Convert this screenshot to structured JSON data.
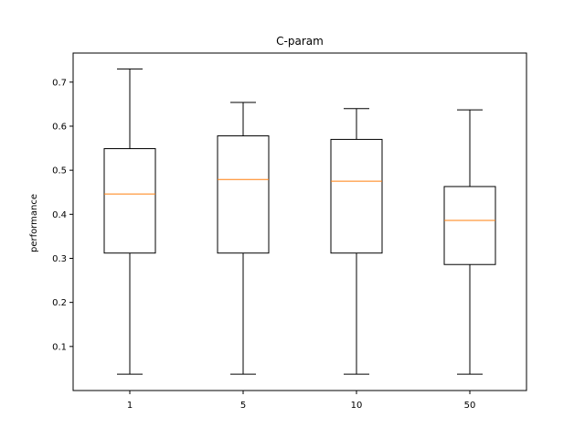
{
  "chart_data": {
    "type": "box",
    "title": "C-param",
    "xlabel": "",
    "ylabel": "performance",
    "categories": [
      "1",
      "5",
      "10",
      "50"
    ],
    "boxes": [
      {
        "category": "1",
        "whisker_low": 0.037,
        "q1": 0.312,
        "median": 0.446,
        "q3": 0.549,
        "whisker_high": 0.73
      },
      {
        "category": "5",
        "whisker_low": 0.037,
        "q1": 0.312,
        "median": 0.479,
        "q3": 0.578,
        "whisker_high": 0.654
      },
      {
        "category": "10",
        "whisker_low": 0.037,
        "q1": 0.312,
        "median": 0.475,
        "q3": 0.57,
        "whisker_high": 0.64
      },
      {
        "category": "50",
        "whisker_low": 0.037,
        "q1": 0.286,
        "median": 0.386,
        "q3": 0.463,
        "whisker_high": 0.637
      }
    ],
    "ylim": [
      0.0,
      0.766
    ],
    "yticks": [
      0.1,
      0.2,
      0.3,
      0.4,
      0.5,
      0.6,
      0.7
    ],
    "ytick_labels": [
      "0.1",
      "0.2",
      "0.3",
      "0.4",
      "0.5",
      "0.6",
      "0.7"
    ],
    "grid": false,
    "colors": {
      "box": "#000000",
      "median": "#ff7f0e",
      "axes": "#000000",
      "background": "#ffffff"
    }
  }
}
